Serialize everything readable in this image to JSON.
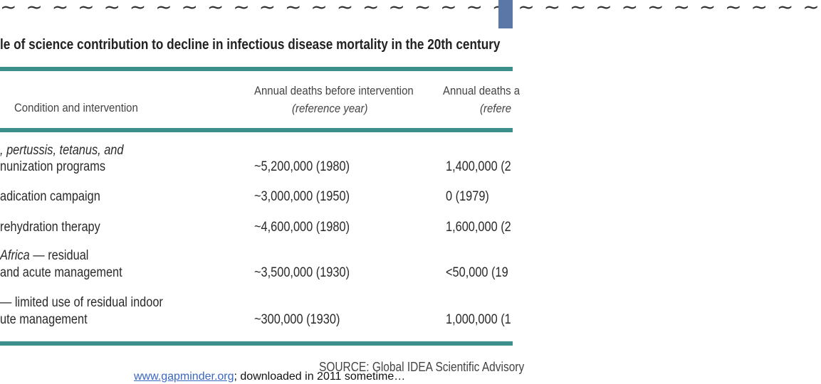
{
  "decoration": {
    "tildes": "~ ~ ~ ~ ~ ~ ~ ~ ~ ~ ~ ~ ~ ~ ~ ~ ~ ~ ~ ~ ~ ~ ~ ~ ~ ~ ~ ~ ~ ~ ~ ~"
  },
  "table": {
    "title": "le of science contribution to decline in infectious disease mortality in the 20th century",
    "headers": {
      "col1": "Condition and intervention",
      "col2_line1": "Annual deaths before intervention",
      "col2_line2": "(reference year)",
      "col3_line1": "Annual deaths a",
      "col3_line2": "(refere"
    },
    "rows": [
      {
        "line1": ", pertussis, tetanus, and",
        "line2": "nunization programs",
        "before": "~5,200,000 (1980)",
        "after": "1,400,000 (2"
      },
      {
        "line1": "adication campaign",
        "line2": "",
        "before": "~3,000,000 (1950)",
        "after": "0 (1979)"
      },
      {
        "line1": "rehydration therapy",
        "line2": "",
        "before": "~4,600,000 (1980)",
        "after": "1,600,000 (2"
      },
      {
        "line1_italic": "Africa",
        "line1_rest": " — residual",
        "line2": "and acute management",
        "before": "~3,500,000 (1930)",
        "after": "<50,000 (19"
      },
      {
        "line1": "— limited use of residual indoor",
        "line2": "ute management",
        "before": "~300,000 (1930)",
        "after": "1,000,000 (1"
      }
    ],
    "source": "SOURCE: Global IDEA Scientific Advisory"
  },
  "footer": {
    "link": "www.gapminder.org",
    "text": "; downloaded in 2011 sometime…"
  }
}
